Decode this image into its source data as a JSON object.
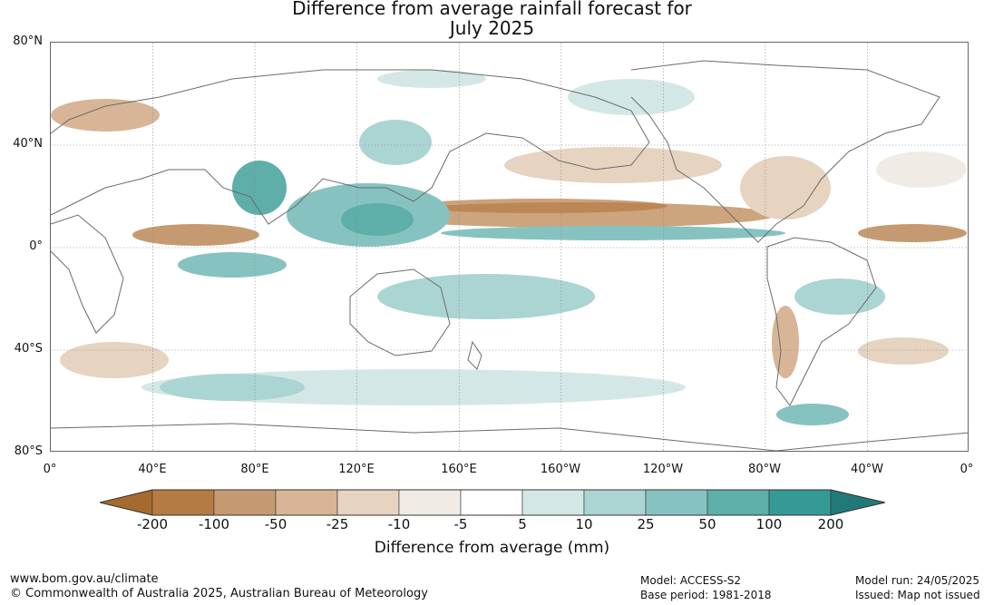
{
  "title": {
    "line1": "Difference from average rainfall forecast for",
    "line2": "July 2025"
  },
  "map": {
    "lat_labels": [
      "80°N",
      "40°N",
      "0°",
      "40°S",
      "80°S"
    ],
    "lon_labels": [
      "0°",
      "40°E",
      "80°E",
      "120°E",
      "160°E",
      "160°W",
      "120°W",
      "80°W",
      "40°W",
      "0°"
    ]
  },
  "colorbar": {
    "colors": [
      "#a56a30",
      "#b57b44",
      "#c69a70",
      "#d7b596",
      "#e6d3c0",
      "#f1ebe5",
      "#ffffff",
      "#d3e8e6",
      "#abd5d2",
      "#86c3c0",
      "#5eaeaa",
      "#359996",
      "#227a78"
    ],
    "ticks": [
      "-200",
      "-100",
      "-50",
      "-25",
      "-10",
      "-5",
      "5",
      "10",
      "25",
      "50",
      "100",
      "200"
    ],
    "label": "Difference from average (mm)"
  },
  "footer": {
    "website": "www.bom.gov.au/climate",
    "copyright": "© Commonwealth of Australia 2025, Australian Bureau of Meteorology",
    "model": "Model: ACCESS-S2",
    "base_period": "Base period: 1981-2018",
    "model_run": "Model run: 24/05/2025",
    "issued": "Issued: Map not issued"
  }
}
